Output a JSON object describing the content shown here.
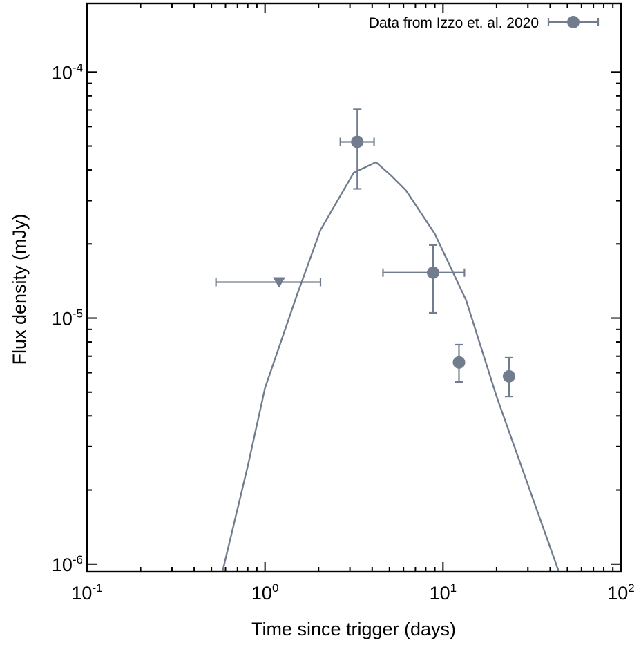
{
  "chart_data": {
    "type": "scatter",
    "xscale": "log",
    "yscale": "log",
    "xlim": [
      0.1,
      100
    ],
    "ylim": [
      9.3e-07,
      0.00019
    ],
    "xlabel": "Time since trigger (days)",
    "ylabel": "Flux density (mJy)",
    "grid": false,
    "legend_position": "top-right",
    "color": "#717d8e",
    "x_ticks": [
      {
        "value": 0.1,
        "base": "10",
        "exp": "-1"
      },
      {
        "value": 1,
        "base": "10",
        "exp": "0"
      },
      {
        "value": 10,
        "base": "10",
        "exp": "1"
      },
      {
        "value": 100,
        "base": "10",
        "exp": "2"
      }
    ],
    "y_ticks": [
      {
        "value": 1e-06,
        "base": "10",
        "exp": "-6"
      },
      {
        "value": 1e-05,
        "base": "10",
        "exp": "-5"
      },
      {
        "value": 0.0001,
        "base": "10",
        "exp": "-4"
      }
    ],
    "series": [
      {
        "name": "Data from Izzo et. al. 2020",
        "type": "errorbar",
        "marker": "circle",
        "points": [
          {
            "x": 3.3,
            "y": 5.2e-05,
            "xerr": [
              2.65,
              4.1
            ],
            "yerr": [
              3.35e-05,
              7.05e-05
            ]
          },
          {
            "x": 8.8,
            "y": 1.53e-05,
            "xerr": [
              4.6,
              13.2
            ],
            "yerr": [
              1.05e-05,
              1.98e-05
            ]
          },
          {
            "x": 12.3,
            "y": 6.6e-06,
            "xerr": null,
            "yerr": [
              5.5e-06,
              7.8e-06
            ]
          },
          {
            "x": 23.5,
            "y": 5.8e-06,
            "xerr": null,
            "yerr": [
              4.8e-06,
              6.9e-06
            ]
          }
        ]
      },
      {
        "type": "upper_limit",
        "marker": "triangle-down",
        "points": [
          {
            "x": 1.2,
            "y": 1.4e-05,
            "xerr": [
              0.53,
              2.05
            ]
          }
        ]
      },
      {
        "type": "line",
        "x": [
          0.57,
          0.8,
          1.0,
          1.5,
          2.05,
          3.15,
          4.2,
          5.1,
          6.2,
          9.0,
          13.5,
          20.0,
          30.0,
          46.0
        ],
        "y": [
          9e-07,
          2.5e-06,
          5.2e-06,
          1.22e-05,
          2.28e-05,
          3.9e-05,
          4.3e-05,
          3.8e-05,
          3.3e-05,
          2.2e-05,
          1.18e-05,
          4.8e-06,
          2.1e-06,
          8.8e-07
        ]
      }
    ]
  }
}
